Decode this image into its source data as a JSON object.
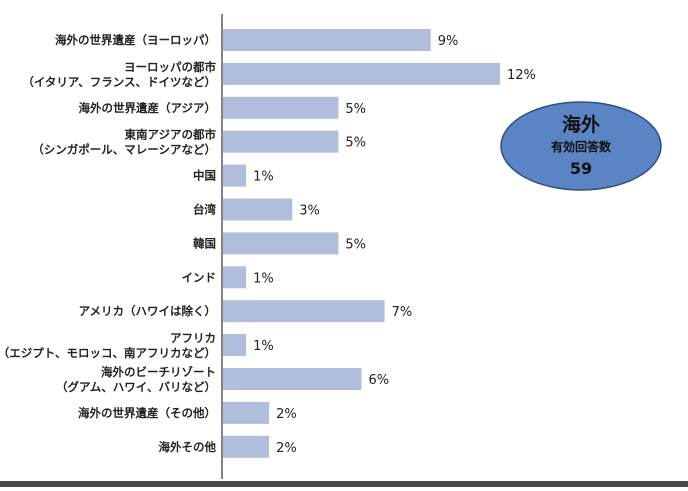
{
  "chart_data": {
    "type": "bar",
    "orientation": "horizontal",
    "categories": [
      [
        "海外の世界遺産（ヨーロッパ）"
      ],
      [
        "ヨーロッパの都市",
        "（イタリア、フランス、ドイツなど）"
      ],
      [
        "海外の世界遺産（アジア）"
      ],
      [
        "東南アジアの都市",
        "（シンガポール、マレーシアなど）"
      ],
      [
        "中国"
      ],
      [
        "台湾"
      ],
      [
        "韓国"
      ],
      [
        "インド"
      ],
      [
        "アメリカ（ハワイは除く）"
      ],
      [
        "アフリカ",
        "（エジプト、モロッコ、南アフリカなど）"
      ],
      [
        "海外のビーチリゾート",
        "（グアム、ハワイ、バリなど）"
      ],
      [
        "海外の世界遺産（その他）"
      ],
      [
        "海外その他"
      ]
    ],
    "values": [
      9,
      12,
      5,
      5,
      1,
      3,
      5,
      1,
      7,
      1,
      6,
      2,
      2
    ],
    "value_labels": [
      "9%",
      "12%",
      "5%",
      "5%",
      "1%",
      "3%",
      "5%",
      "1%",
      "7%",
      "1%",
      "6%",
      "2%",
      "2%"
    ],
    "unit": "%",
    "xlim": [
      0,
      12
    ],
    "grid": false,
    "bar_color": "#b0bedb",
    "axis_color": "#333333"
  },
  "badge": {
    "title": "海外",
    "subtitle": "有効回答数",
    "count": "59",
    "fill_color": "#5b84c4",
    "border_color": "#2f4f82"
  }
}
